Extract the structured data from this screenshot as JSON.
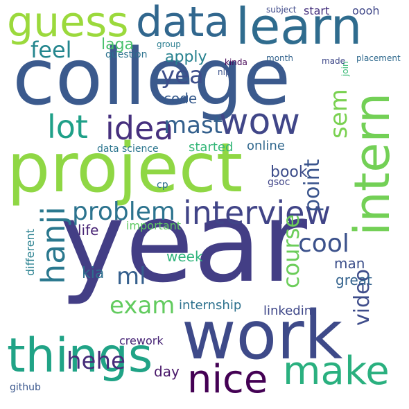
{
  "words": [
    {
      "text": "college",
      "color": "#3b5a8d"
    },
    {
      "text": "year",
      "color": "#433e85"
    },
    {
      "text": "project",
      "color": "#8fd744"
    },
    {
      "text": "work",
      "color": "#3e4a89"
    },
    {
      "text": "learn",
      "color": "#2f6c8e"
    },
    {
      "text": "intern",
      "color": "#73d056"
    },
    {
      "text": "guess",
      "color": "#9bd93c"
    },
    {
      "text": "data",
      "color": "#31678e"
    },
    {
      "text": "things",
      "color": "#20a386"
    },
    {
      "text": "make",
      "color": "#2ab07f"
    },
    {
      "text": "nice",
      "color": "#440154"
    },
    {
      "text": "interview",
      "color": "#414487"
    },
    {
      "text": "wow",
      "color": "#404688"
    },
    {
      "text": "hanji",
      "color": "#2a788e"
    },
    {
      "text": "lot",
      "color": "#1fa088"
    },
    {
      "text": "idea",
      "color": "#46307e"
    },
    {
      "text": "feel",
      "color": "#24868e"
    },
    {
      "text": "yea",
      "color": "#3d4e8a"
    },
    {
      "text": "mast",
      "color": "#34608d"
    },
    {
      "text": "sem",
      "color": "#7ad151"
    },
    {
      "text": "problem",
      "color": "#2c738e"
    },
    {
      "text": "cool",
      "color": "#3b518b"
    },
    {
      "text": "course",
      "color": "#6ccd5a"
    },
    {
      "text": "point",
      "color": "#3a548c"
    },
    {
      "text": "exam",
      "color": "#62cb5f"
    },
    {
      "text": "ml",
      "color": "#355f8d"
    },
    {
      "text": "hehe",
      "color": "#472c7a"
    },
    {
      "text": "video",
      "color": "#3e4c8a"
    },
    {
      "text": "code",
      "color": "#375b8d"
    },
    {
      "text": "laga",
      "color": "#4ac16d"
    },
    {
      "text": "apply",
      "color": "#26818e"
    },
    {
      "text": "online",
      "color": "#31688e"
    },
    {
      "text": "started",
      "color": "#35b779"
    },
    {
      "text": "data science",
      "color": "#2b758e"
    },
    {
      "text": "book",
      "color": "#3d4d8a"
    },
    {
      "text": "internship",
      "color": "#2d718e"
    },
    {
      "text": "linkedin",
      "color": "#3f4889"
    },
    {
      "text": "kia",
      "color": "#2e6e8e"
    },
    {
      "text": "week",
      "color": "#2fb47c"
    },
    {
      "text": "man",
      "color": "#3c4f8a"
    },
    {
      "text": "great",
      "color": "#33628d"
    },
    {
      "text": "crework",
      "color": "#482576"
    },
    {
      "text": "life",
      "color": "#482475"
    },
    {
      "text": "different",
      "color": "#277f8e"
    },
    {
      "text": "important",
      "color": "#5ec962"
    },
    {
      "text": "day",
      "color": "#481769"
    },
    {
      "text": "video",
      "color": "#3e4c8a"
    },
    {
      "text": "start",
      "color": "#46327e"
    },
    {
      "text": "oooh",
      "color": "#3f4788"
    },
    {
      "text": "question",
      "color": "#2c728e"
    },
    {
      "text": "month",
      "color": "#33638d"
    },
    {
      "text": "placement",
      "color": "#306a8e"
    },
    {
      "text": "github",
      "color": "#39568c"
    },
    {
      "text": "gsoc",
      "color": "#404588"
    },
    {
      "text": "cp",
      "color": "#2d708e"
    },
    {
      "text": "join",
      "color": "#3aba76"
    },
    {
      "text": "made",
      "color": "#3f4889"
    },
    {
      "text": "group",
      "color": "#287c8e"
    },
    {
      "text": "subject",
      "color": "#3e4989"
    },
    {
      "text": "nlp",
      "color": "#3b528b"
    },
    {
      "text": "kinda",
      "color": "#440154"
    }
  ]
}
